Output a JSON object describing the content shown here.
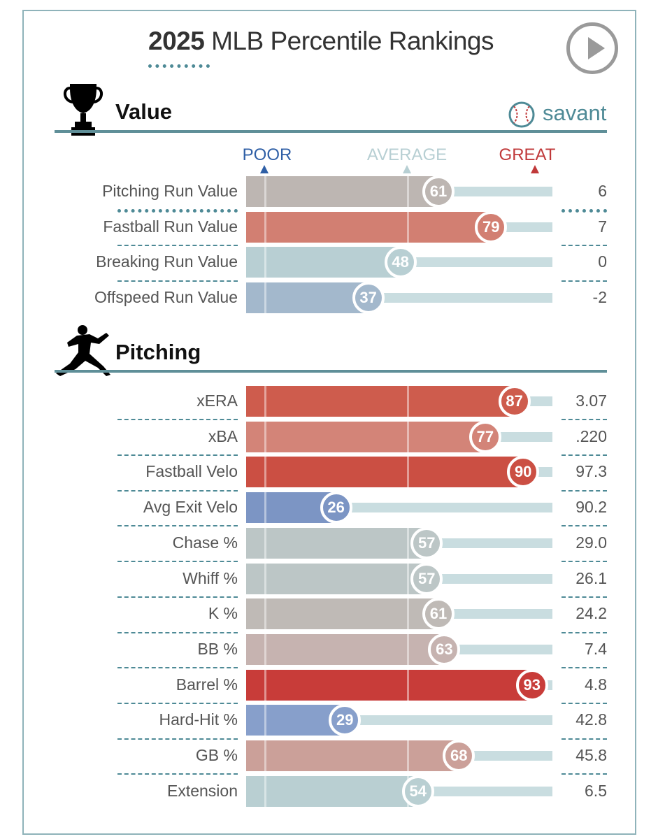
{
  "title": {
    "year": "2025",
    "rest": "MLB Percentile Rankings"
  },
  "sections": {
    "value": "Value",
    "pitching": "Pitching"
  },
  "brand": "savant",
  "scale": {
    "poor": "POOR",
    "average": "AVERAGE",
    "great": "GREAT"
  },
  "icons": {
    "play": "play-icon",
    "trophy": "trophy-icon",
    "pitcher": "pitcher-icon",
    "baseball": "baseball-icon"
  },
  "colors": {
    "poor": "#2f5fa6",
    "average": "#b7cfd3",
    "great": "#c0393a",
    "accent": "#4e8a96"
  },
  "chart_data": {
    "type": "bar",
    "title": "2025 MLB Percentile Rankings",
    "xlim": [
      0,
      100
    ],
    "value_metrics": [
      {
        "label": "Pitching Run Value",
        "percentile": 61,
        "value": "6",
        "color": "#bdb6b2"
      },
      {
        "label": "Fastball Run Value",
        "percentile": 79,
        "value": "7",
        "color": "#d27f72"
      },
      {
        "label": "Breaking Run Value",
        "percentile": 48,
        "value": "0",
        "color": "#b8cfd3"
      },
      {
        "label": "Offspeed Run Value",
        "percentile": 37,
        "value": "-2",
        "color": "#a3b8cc"
      }
    ],
    "pitching_metrics": [
      {
        "label": "xERA",
        "percentile": 87,
        "value": "3.07",
        "color": "#ce5c4d"
      },
      {
        "label": "xBA",
        "percentile": 77,
        "value": ".220",
        "color": "#d38478"
      },
      {
        "label": "Fastball Velo",
        "percentile": 90,
        "value": "97.3",
        "color": "#cb4f43"
      },
      {
        "label": "Avg Exit Velo",
        "percentile": 26,
        "value": "90.2",
        "color": "#7c95c4"
      },
      {
        "label": "Chase %",
        "percentile": 57,
        "value": "29.0",
        "color": "#bcc6c6"
      },
      {
        "label": "Whiff %",
        "percentile": 57,
        "value": "26.1",
        "color": "#bcc6c6"
      },
      {
        "label": "K %",
        "percentile": 61,
        "value": "24.2",
        "color": "#bfbab6"
      },
      {
        "label": "BB %",
        "percentile": 63,
        "value": "7.4",
        "color": "#c6b3b0"
      },
      {
        "label": "Barrel %",
        "percentile": 93,
        "value": "4.8",
        "color": "#c83c39"
      },
      {
        "label": "Hard-Hit %",
        "percentile": 29,
        "value": "42.8",
        "color": "#879fcb"
      },
      {
        "label": "GB %",
        "percentile": 68,
        "value": "45.8",
        "color": "#cba099"
      },
      {
        "label": "Extension",
        "percentile": 54,
        "value": "6.5",
        "color": "#b9cfd2"
      }
    ]
  }
}
